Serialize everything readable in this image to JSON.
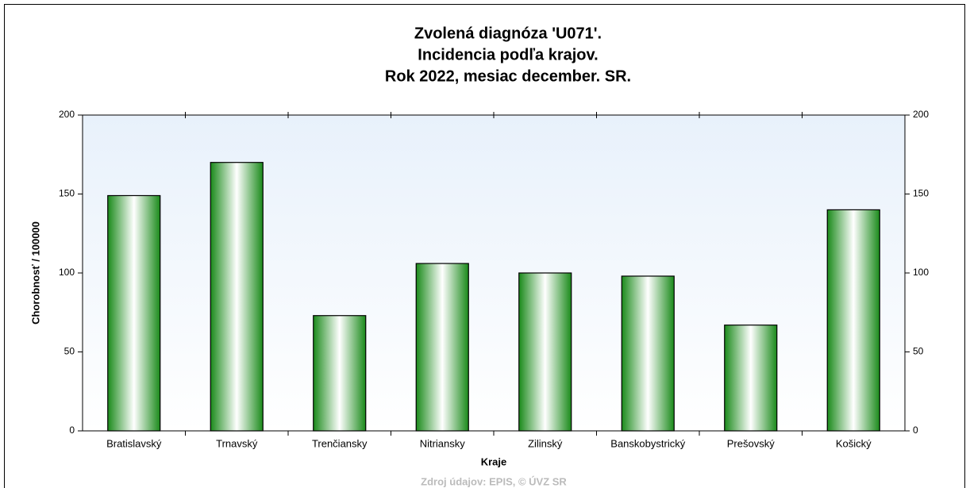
{
  "chart_data": {
    "type": "bar",
    "title": [
      "Zvolená diagnóza 'U071'.",
      "Incidencia podľa krajov.",
      "Rok 2022, mesiac december. SR."
    ],
    "xlabel": "Kraje",
    "ylabel": "Chorobnosť / 100000",
    "source": "Zdroj údajov: EPIS, © ÚVZ SR",
    "categories": [
      "Bratislavský",
      "Trnavský",
      "Trenčiansky",
      "Nitriansky",
      "Zilinský",
      "Banskobystrický",
      "Prešovský",
      "Košický"
    ],
    "values": [
      149,
      170,
      73,
      106,
      100,
      98,
      67,
      140
    ],
    "color": "#1a8a1a",
    "ylim": [
      0,
      200
    ],
    "yticks": [
      0,
      50,
      100,
      150,
      200
    ],
    "y2lim": [
      0,
      200
    ],
    "y2ticks": [
      0,
      50,
      100,
      150,
      200
    ]
  }
}
